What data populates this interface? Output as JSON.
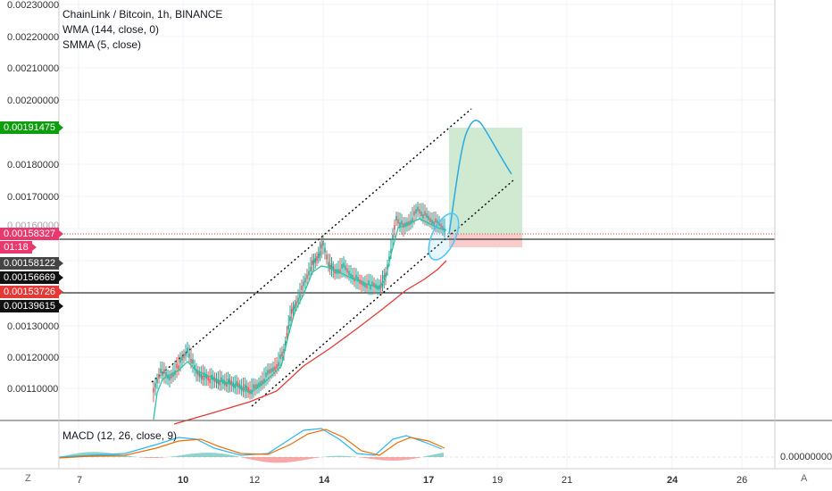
{
  "legend": {
    "title": "ChainLink / Bitcoin, 1h, BINANCE",
    "ind1": "WMA (144, close, 0)",
    "ind2": "SMMA (5, close)"
  },
  "macd_label": "MACD (12, 26, close, 9)",
  "price_axis": {
    "ticks": [
      "0.00230000",
      "0.00220000",
      "0.00210000",
      "0.00200000",
      "0.00180000",
      "0.00170000",
      "0.00130000",
      "0.00120000",
      "0.00110000"
    ],
    "partial_tick": "0.00160000"
  },
  "badges": [
    {
      "text": "0.00191475",
      "color": "#0d9d0d",
      "name": "target-price-badge"
    },
    {
      "text": "0.00158327",
      "color": "#e8386d",
      "name": "last-price-badge"
    },
    {
      "text": "01:18",
      "color": "#e8386d",
      "name": "countdown-badge"
    },
    {
      "text": "0.00158122",
      "color": "#444444",
      "name": "price-badge-1"
    },
    {
      "text": "0.00156669",
      "color": "#111111",
      "name": "price-badge-2"
    },
    {
      "text": "0.00153726",
      "color": "#e53935",
      "name": "stop-price-badge"
    },
    {
      "text": "0.00139615",
      "color": "#111111",
      "name": "price-badge-3"
    }
  ],
  "macd_axis": {
    "tick": "0.00000000"
  },
  "time_axis": {
    "labels": [
      {
        "text": "7",
        "bold": false
      },
      {
        "text": "10",
        "bold": true
      },
      {
        "text": "12",
        "bold": false
      },
      {
        "text": "14",
        "bold": true
      },
      {
        "text": "17",
        "bold": true
      },
      {
        "text": "19",
        "bold": false
      },
      {
        "text": "21",
        "bold": false
      },
      {
        "text": "24",
        "bold": true
      },
      {
        "text": "26",
        "bold": false
      }
    ]
  },
  "corners": {
    "left": "Z",
    "right": "A"
  },
  "colors": {
    "wma": "#e53935",
    "smma": "#26c6a5",
    "long_fill": "#c8e6c9",
    "stop_fill": "#f8c6c6",
    "circle": "#4fc3f7",
    "up": "#26a69a",
    "down": "#ef5350"
  }
}
